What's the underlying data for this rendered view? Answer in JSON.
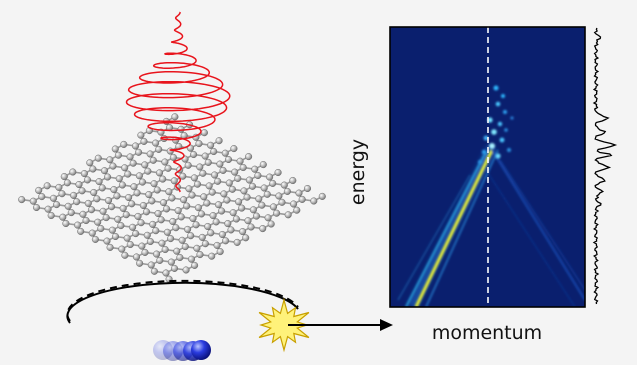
{
  "panel": {
    "xlabel": "momentum",
    "ylabel": "energy"
  },
  "colors": {
    "background": "#f4f4f4",
    "pulse": "#e8141c",
    "lattice_bond": "#9a9a9a",
    "lattice_atom": "#b0b0b0",
    "map_background": "#0a1f6e",
    "map_band_high": "#dfe83a",
    "map_band_mid": "#2aa6e0",
    "electron": "#1a2bd0",
    "star_fill": "#fff27a",
    "star_stroke": "#c8a000"
  },
  "icons": {
    "pulse": "light-pulse-helix-icon",
    "lattice": "graphene-lattice-icon",
    "orbit": "electron-orbit-icon",
    "electron": "electron-sphere-icon",
    "collision": "collision-star-icon",
    "arrow": "right-arrow-icon"
  }
}
